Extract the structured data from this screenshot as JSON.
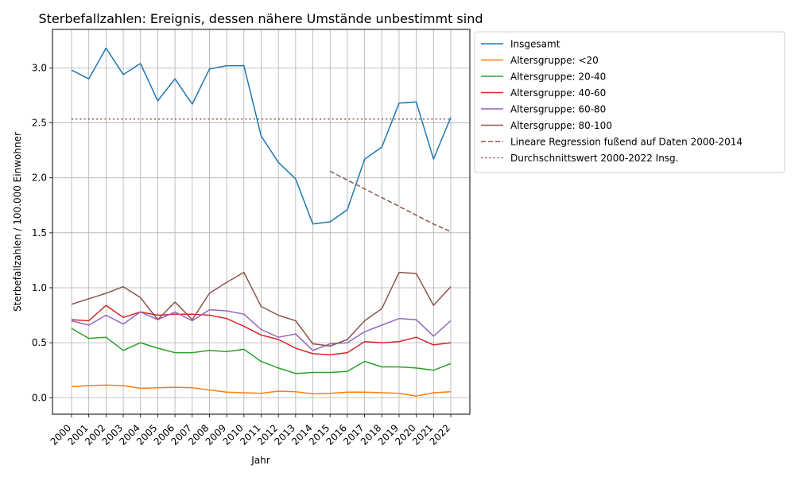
{
  "chart_data": {
    "type": "line",
    "title": "Sterbefallzahlen: Ereignis, dessen nähere Umstände unbestimmt sind",
    "xlabel": "Jahr",
    "ylabel": "Sterbefallzahlen / 100.000 Einwohner",
    "x": [
      "2000",
      "2001",
      "2002",
      "2003",
      "2004",
      "2005",
      "2006",
      "2007",
      "2008",
      "2009",
      "2010",
      "2011",
      "2012",
      "2013",
      "2014",
      "2015",
      "2016",
      "2017",
      "2018",
      "2019",
      "2020",
      "2021",
      "2022"
    ],
    "ylim": [
      -0.15,
      3.35
    ],
    "yticks": [
      "0.0",
      "0.5",
      "1.0",
      "1.5",
      "2.0",
      "2.5",
      "3.0"
    ],
    "grid": true,
    "legend_position": "outside-top-right",
    "series": [
      {
        "name": "Insgesamt",
        "color": "#1f77b4",
        "style": "solid",
        "values": [
          2.98,
          2.9,
          3.18,
          2.94,
          3.04,
          2.7,
          2.9,
          2.67,
          2.99,
          3.02,
          3.02,
          2.38,
          2.14,
          1.99,
          1.58,
          1.6,
          1.71,
          2.17,
          2.28,
          2.68,
          2.69,
          2.17,
          2.55
        ]
      },
      {
        "name": "Altersgruppe: <20",
        "color": "#ff7f0e",
        "style": "solid",
        "values": [
          0.1,
          0.11,
          0.115,
          0.11,
          0.085,
          0.09,
          0.095,
          0.09,
          0.07,
          0.05,
          0.045,
          0.04,
          0.06,
          0.055,
          0.035,
          0.04,
          0.05,
          0.05,
          0.045,
          0.04,
          0.015,
          0.045,
          0.055
        ]
      },
      {
        "name": "Altersgruppe: 20-40",
        "color": "#2ca02c",
        "style": "solid",
        "values": [
          0.63,
          0.54,
          0.55,
          0.43,
          0.5,
          0.45,
          0.41,
          0.41,
          0.43,
          0.42,
          0.44,
          0.33,
          0.27,
          0.22,
          0.23,
          0.23,
          0.24,
          0.33,
          0.28,
          0.28,
          0.27,
          0.25,
          0.31
        ]
      },
      {
        "name": "Altersgruppe: 40-60",
        "color": "#d62728",
        "style": "solid",
        "values": [
          0.71,
          0.7,
          0.84,
          0.73,
          0.78,
          0.75,
          0.76,
          0.76,
          0.75,
          0.72,
          0.65,
          0.57,
          0.53,
          0.45,
          0.4,
          0.39,
          0.41,
          0.51,
          0.5,
          0.51,
          0.55,
          0.48,
          0.5
        ]
      },
      {
        "name": "Altersgruppe: 60-80",
        "color": "#9467bd",
        "style": "solid",
        "values": [
          0.7,
          0.66,
          0.75,
          0.67,
          0.78,
          0.71,
          0.78,
          0.7,
          0.8,
          0.79,
          0.76,
          0.62,
          0.55,
          0.58,
          0.43,
          0.49,
          0.5,
          0.6,
          0.66,
          0.72,
          0.71,
          0.56,
          0.7
        ]
      },
      {
        "name": "Altersgruppe: 80-100",
        "color": "#8c564b",
        "style": "solid",
        "values": [
          0.85,
          0.9,
          0.95,
          1.01,
          0.91,
          0.71,
          0.87,
          0.71,
          0.95,
          1.05,
          1.14,
          0.83,
          0.75,
          0.7,
          0.49,
          0.47,
          0.53,
          0.7,
          0.81,
          1.14,
          1.13,
          0.84,
          1.01
        ]
      },
      {
        "name": "Lineare Regression fußend auf Daten 2000-2014",
        "color": "#8c564b",
        "style": "dashed",
        "values": [
          null,
          null,
          null,
          null,
          null,
          null,
          null,
          null,
          null,
          null,
          null,
          null,
          null,
          null,
          null,
          2.06,
          1.98,
          1.9,
          1.82,
          1.74,
          1.66,
          1.58,
          1.51
        ]
      },
      {
        "name": "Durchschnittswert 2000-2022 Insg.",
        "color": "#8c564b",
        "style": "dotted",
        "values": [
          2.535,
          2.535,
          2.535,
          2.535,
          2.535,
          2.535,
          2.535,
          2.535,
          2.535,
          2.535,
          2.535,
          2.535,
          2.535,
          2.535,
          2.535,
          2.535,
          2.535,
          2.535,
          2.535,
          2.535,
          2.535,
          2.535,
          2.535
        ]
      }
    ]
  }
}
